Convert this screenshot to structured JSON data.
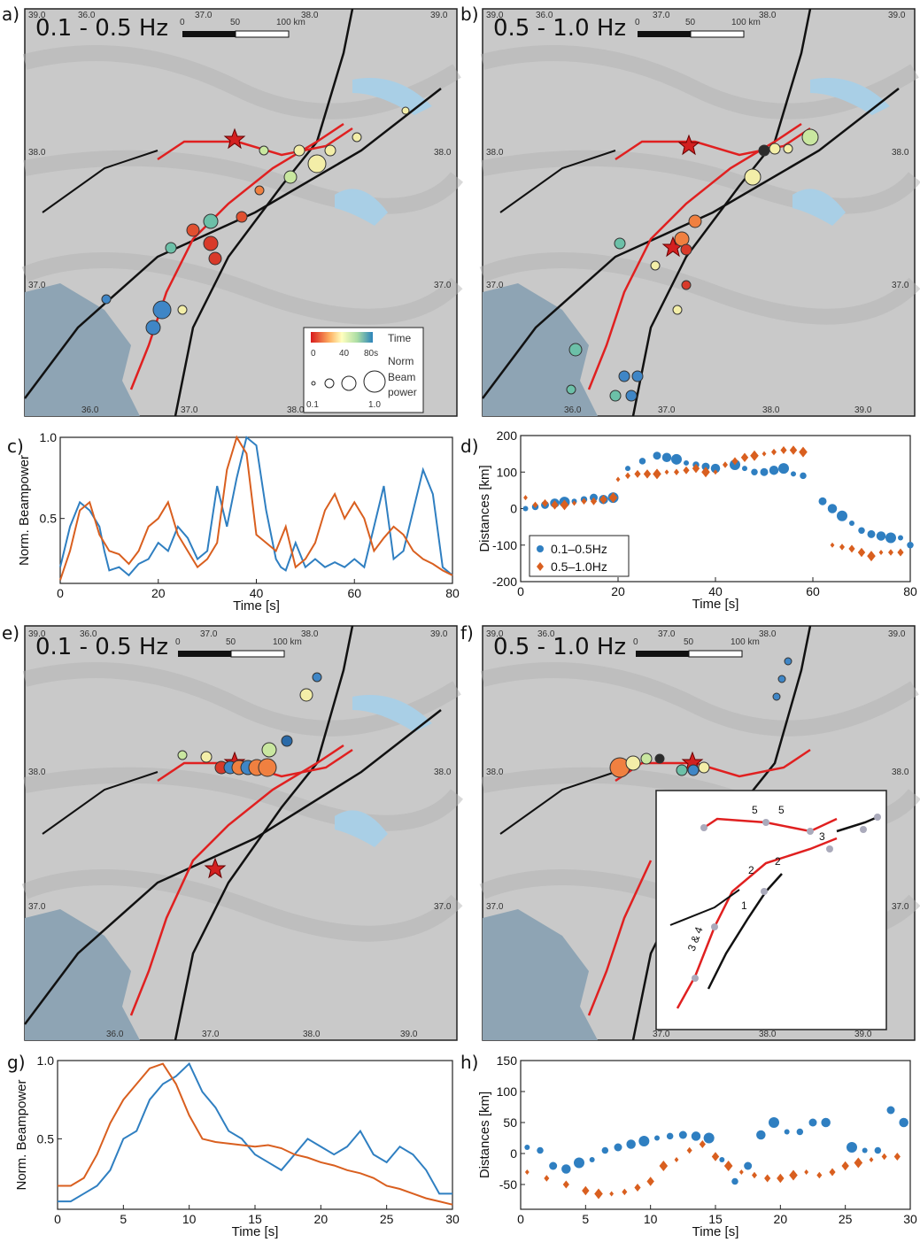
{
  "panel_letters": [
    "a)",
    "b)",
    "c)",
    "d)",
    "e)",
    "f)",
    "g)",
    "h)"
  ],
  "maps": {
    "top_ticks": [
      "39.0",
      "36.0",
      "37.0",
      "38.0",
      "39.0"
    ],
    "bottom_ticks": [
      "36.0",
      "37.0",
      "38.0",
      "39.0"
    ],
    "lat_ticks": [
      "38.0",
      "37.0"
    ],
    "scalebar": {
      "labels": [
        "0",
        "50",
        "100 km"
      ]
    },
    "a": {
      "freq": "0.1  - 0.5 Hz"
    },
    "b": {
      "freq": "0.5  - 1.0 Hz"
    },
    "e": {
      "freq": "0.1  - 0.5 Hz"
    },
    "f": {
      "freq": "0.5  - 1.0 Hz"
    },
    "legend": {
      "time_label": "Time",
      "time_ticks": [
        "0",
        "40",
        "80s"
      ],
      "size_label_1": "Norm",
      "size_label_2": "Beam",
      "size_label_3": "power",
      "size_min": "0.1",
      "size_max": "1.0"
    },
    "inset": {
      "labels": [
        "5",
        "5",
        "3",
        "2",
        "2",
        "1",
        "3 & 4"
      ]
    }
  },
  "chart_data": [
    {
      "id": "c",
      "type": "line",
      "xlabel": "Time [s]",
      "ylabel": "Norm. Beampower",
      "xlim": [
        0,
        80
      ],
      "ylim": [
        0.1,
        1.0
      ],
      "x_ticks": [
        "0",
        "20",
        "40",
        "60",
        "80"
      ],
      "y_ticks": [
        "0.5",
        "1.0"
      ],
      "series": [
        {
          "color": "#2f7fc1",
          "x": [
            0,
            2,
            4,
            6,
            8,
            9,
            10,
            12,
            14,
            16,
            18,
            20,
            22,
            24,
            26,
            28,
            30,
            32,
            34,
            36,
            38,
            40,
            42,
            44,
            45,
            46,
            48,
            50,
            52,
            54,
            56,
            58,
            60,
            62,
            64,
            66,
            68,
            70,
            72,
            74,
            76,
            78,
            80
          ],
          "y": [
            0.2,
            0.45,
            0.6,
            0.55,
            0.45,
            0.3,
            0.18,
            0.2,
            0.15,
            0.22,
            0.25,
            0.35,
            0.3,
            0.45,
            0.38,
            0.25,
            0.3,
            0.7,
            0.45,
            0.75,
            1.0,
            0.95,
            0.55,
            0.25,
            0.2,
            0.18,
            0.35,
            0.2,
            0.25,
            0.2,
            0.23,
            0.2,
            0.25,
            0.2,
            0.45,
            0.7,
            0.25,
            0.3,
            0.55,
            0.8,
            0.65,
            0.2,
            0.15
          ]
        },
        {
          "color": "#d95f1f",
          "x": [
            0,
            2,
            4,
            6,
            8,
            10,
            12,
            14,
            16,
            18,
            20,
            22,
            24,
            26,
            28,
            30,
            32,
            34,
            36,
            38,
            40,
            42,
            44,
            46,
            48,
            50,
            52,
            54,
            56,
            58,
            60,
            62,
            64,
            66,
            68,
            70,
            72,
            74,
            76,
            78,
            80
          ],
          "y": [
            0.12,
            0.3,
            0.55,
            0.6,
            0.4,
            0.3,
            0.28,
            0.22,
            0.3,
            0.45,
            0.5,
            0.6,
            0.4,
            0.3,
            0.2,
            0.25,
            0.35,
            0.8,
            1.0,
            0.9,
            0.4,
            0.35,
            0.3,
            0.45,
            0.2,
            0.25,
            0.35,
            0.55,
            0.65,
            0.5,
            0.6,
            0.5,
            0.3,
            0.38,
            0.45,
            0.4,
            0.3,
            0.25,
            0.22,
            0.18,
            0.15
          ]
        }
      ]
    },
    {
      "id": "d",
      "type": "scatter",
      "xlabel": "Time [s]",
      "ylabel": "Distances [km]",
      "xlim": [
        0,
        80
      ],
      "ylim": [
        -200,
        200
      ],
      "x_ticks": [
        "0",
        "20",
        "40",
        "60",
        "80"
      ],
      "y_ticks": [
        "200",
        "100",
        "0",
        "-100",
        "-200"
      ],
      "legend": {
        "position": "bottom-left"
      },
      "series": [
        {
          "name": "0.1–0.5Hz",
          "color": "#2f7fc1",
          "marker": "circle",
          "x": [
            1,
            3,
            5,
            7,
            9,
            11,
            13,
            15,
            17,
            19,
            22,
            25,
            28,
            30,
            32,
            34,
            36,
            38,
            40,
            44,
            46,
            48,
            50,
            52,
            54,
            56,
            58,
            62,
            64,
            66,
            68,
            70,
            72,
            74,
            76,
            78,
            80
          ],
          "y": [
            0,
            5,
            10,
            15,
            18,
            20,
            25,
            30,
            25,
            30,
            110,
            130,
            145,
            140,
            135,
            125,
            120,
            115,
            110,
            120,
            110,
            100,
            100,
            105,
            110,
            95,
            90,
            20,
            0,
            -20,
            -40,
            -60,
            -70,
            -75,
            -80,
            -80,
            -100
          ]
        },
        {
          "name": "0.5–1.0Hz",
          "color": "#d95f1f",
          "marker": "diamond",
          "x": [
            1,
            3,
            5,
            7,
            9,
            11,
            13,
            15,
            17,
            19,
            20,
            22,
            24,
            26,
            28,
            30,
            32,
            34,
            36,
            38,
            40,
            42,
            44,
            46,
            48,
            50,
            52,
            54,
            56,
            58,
            64,
            66,
            68,
            70,
            72,
            74,
            76,
            78
          ],
          "y": [
            30,
            10,
            15,
            10,
            10,
            15,
            20,
            20,
            25,
            30,
            80,
            90,
            95,
            95,
            95,
            100,
            100,
            105,
            110,
            100,
            100,
            120,
            130,
            140,
            145,
            150,
            155,
            160,
            160,
            155,
            -100,
            -105,
            -110,
            -120,
            -130,
            -120,
            -120,
            -120
          ]
        }
      ]
    },
    {
      "id": "g",
      "type": "line",
      "xlabel": "Time [s]",
      "ylabel": "Norm. Beampower",
      "xlim": [
        0,
        30
      ],
      "ylim": [
        0.05,
        1.0
      ],
      "x_ticks": [
        "0",
        "5",
        "10",
        "15",
        "20",
        "25",
        "30"
      ],
      "y_ticks": [
        "0.5",
        "1.0"
      ],
      "series": [
        {
          "color": "#2f7fc1",
          "x": [
            0,
            1,
            2,
            3,
            4,
            5,
            6,
            7,
            8,
            9,
            10,
            11,
            12,
            13,
            14,
            15,
            16,
            17,
            18,
            19,
            20,
            21,
            22,
            23,
            24,
            25,
            26,
            27,
            28,
            29,
            30
          ],
          "y": [
            0.1,
            0.1,
            0.15,
            0.2,
            0.3,
            0.5,
            0.55,
            0.75,
            0.85,
            0.9,
            0.98,
            0.8,
            0.7,
            0.55,
            0.5,
            0.4,
            0.35,
            0.3,
            0.4,
            0.5,
            0.45,
            0.4,
            0.45,
            0.55,
            0.4,
            0.35,
            0.45,
            0.4,
            0.3,
            0.15,
            0.15
          ]
        },
        {
          "color": "#d95f1f",
          "x": [
            0,
            1,
            2,
            3,
            4,
            5,
            6,
            7,
            8,
            9,
            10,
            11,
            12,
            13,
            14,
            15,
            16,
            17,
            18,
            19,
            20,
            21,
            22,
            23,
            24,
            25,
            26,
            27,
            28,
            29,
            30
          ],
          "y": [
            0.2,
            0.2,
            0.25,
            0.4,
            0.6,
            0.75,
            0.85,
            0.95,
            0.98,
            0.85,
            0.65,
            0.5,
            0.48,
            0.47,
            0.46,
            0.45,
            0.46,
            0.44,
            0.4,
            0.38,
            0.35,
            0.33,
            0.3,
            0.28,
            0.25,
            0.2,
            0.18,
            0.15,
            0.12,
            0.1,
            0.08
          ]
        }
      ]
    },
    {
      "id": "h",
      "type": "scatter",
      "xlabel": "Time [s]",
      "ylabel": "Distances [km]",
      "xlim": [
        0,
        30
      ],
      "ylim": [
        -90,
        150
      ],
      "x_ticks": [
        "0",
        "5",
        "10",
        "15",
        "20",
        "25",
        "30"
      ],
      "y_ticks": [
        "150",
        "100",
        "50",
        "0",
        "-50"
      ],
      "series": [
        {
          "color": "#2f7fc1",
          "marker": "circle",
          "x": [
            0.5,
            1.5,
            2.5,
            3.5,
            4.5,
            5.5,
            6.5,
            7.5,
            8.5,
            9.5,
            10.5,
            11.5,
            12.5,
            13.5,
            14.5,
            15.5,
            16.5,
            17.5,
            18.5,
            19.5,
            20.5,
            21.5,
            22.5,
            23.5,
            25.5,
            26.5,
            27.5,
            28.5,
            29.5
          ],
          "y": [
            10,
            5,
            -20,
            -25,
            -15,
            -10,
            5,
            10,
            15,
            20,
            25,
            28,
            30,
            28,
            25,
            -10,
            -45,
            -20,
            30,
            50,
            35,
            35,
            50,
            50,
            10,
            5,
            5,
            70,
            50
          ]
        },
        {
          "color": "#d95f1f",
          "marker": "diamond",
          "x": [
            0.5,
            2,
            3.5,
            5,
            6,
            7,
            8,
            9,
            10,
            11,
            12,
            13,
            14,
            15,
            16,
            17,
            18,
            19,
            20,
            21,
            22,
            23,
            24,
            25,
            26,
            27,
            28,
            29
          ],
          "y": [
            -30,
            -40,
            -50,
            -60,
            -65,
            -65,
            -62,
            -55,
            -45,
            -20,
            -10,
            5,
            15,
            -5,
            -20,
            -30,
            -35,
            -40,
            -40,
            -35,
            -30,
            -35,
            -30,
            -20,
            -15,
            -10,
            -5,
            -5
          ]
        }
      ]
    }
  ]
}
